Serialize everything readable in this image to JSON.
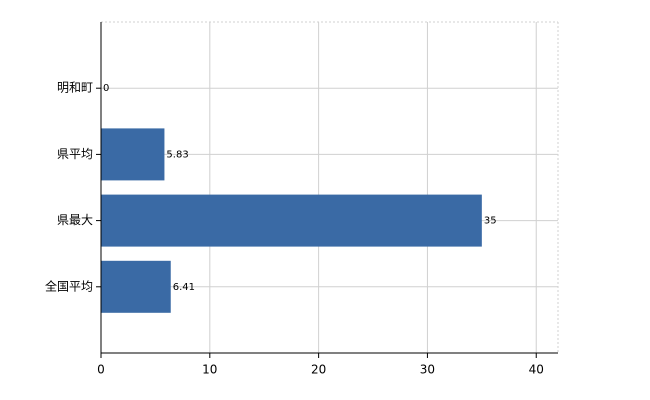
{
  "chart_data": {
    "type": "barh",
    "categories": [
      "明和町",
      "県平均",
      "県最大",
      "全国平均"
    ],
    "values": [
      0,
      5.83,
      35,
      6.41
    ],
    "color": "#3a6aa5",
    "xlim": [
      0,
      42
    ],
    "xticks": [
      0,
      10,
      20,
      30,
      40
    ],
    "grid": true
  }
}
